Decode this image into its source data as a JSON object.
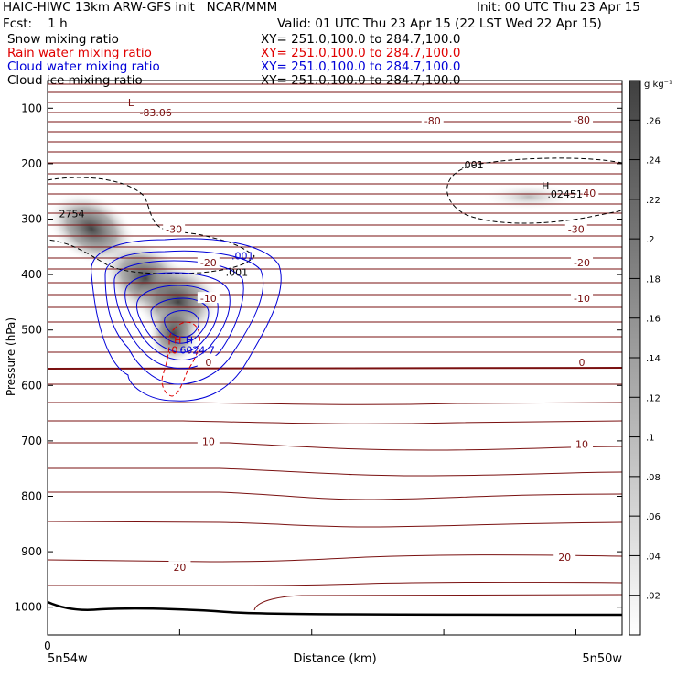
{
  "header": {
    "line1_left": "HAIC-HIWC 13km ARW-GFS init   NCAR/MMM",
    "line1_right": "Init: 00 UTC Thu 23 Apr 15",
    "line2_left": "Fcst:    1 h",
    "line2_right": "Valid: 01 UTC Thu 23 Apr 15 (22 LST Wed 22 Apr 15)"
  },
  "fields": [
    {
      "label": "Snow mixing ratio",
      "range": "XY= 251.0,100.0 to 284.7,100.0",
      "color": "#000000"
    },
    {
      "label": "Rain water mixing ratio",
      "range": "XY= 251.0,100.0 to 284.7,100.0",
      "color": "#e00000"
    },
    {
      "label": "Cloud water mixing ratio",
      "range": "XY= 251.0,100.0 to 284.7,100.0",
      "color": "#0000d8"
    },
    {
      "label": "Cloud ice mixing ratio",
      "range": "XY= 251.0,100.0 to 284.7,100.0",
      "color": "#000000"
    }
  ],
  "chart_data": {
    "type": "contour",
    "xlabel": "Distance (km)",
    "ylabel": "Pressure (hPa)",
    "x_tick_labels": [
      "0"
    ],
    "x_endpoint_labels": {
      "left": "5n54w",
      "right": "5n50w"
    },
    "y_ticks": [
      100,
      200,
      300,
      400,
      500,
      600,
      700,
      800,
      900,
      1000
    ],
    "ylim": [
      50,
      1050
    ],
    "colorbar": {
      "unit": "g kg⁻¹",
      "ticks": [
        ".02",
        ".04",
        ".06",
        ".08",
        ".1",
        ".12",
        ".14",
        ".16",
        ".18",
        ".2",
        ".22",
        ".24",
        ".26"
      ]
    },
    "temperature_contour_labels": [
      {
        "text": "-80",
        "x": 0.67,
        "p": 123
      },
      {
        "text": "-80",
        "x": 0.93,
        "p": 121
      },
      {
        "text": "-40",
        "x": 0.94,
        "p": 253
      },
      {
        "text": "-30",
        "x": 0.22,
        "p": 318
      },
      {
        "text": "-30",
        "x": 0.92,
        "p": 318
      },
      {
        "text": "-20",
        "x": 0.28,
        "p": 378
      },
      {
        "text": "-20",
        "x": 0.93,
        "p": 378
      },
      {
        "text": "-10",
        "x": 0.28,
        "p": 443
      },
      {
        "text": "-10",
        "x": 0.93,
        "p": 443
      },
      {
        "text": "0",
        "x": 0.28,
        "p": 558
      },
      {
        "text": "0",
        "x": 0.93,
        "p": 558
      },
      {
        "text": "10",
        "x": 0.28,
        "p": 701
      },
      {
        "text": "10",
        "x": 0.93,
        "p": 706
      },
      {
        "text": "20",
        "x": 0.23,
        "p": 928
      },
      {
        "text": "20",
        "x": 0.9,
        "p": 910
      }
    ],
    "extrema_labels": [
      {
        "text": "L",
        "x": 0.14,
        "p": 90,
        "color": "#7a1010"
      },
      {
        "text": "-83.06",
        "x": 0.16,
        "p": 108,
        "color": "#7a1010"
      },
      {
        "text": "2754",
        "x": 0.02,
        "p": 290,
        "color": "#000000"
      },
      {
        "text": "H",
        "x": 0.86,
        "p": 240,
        "color": "#000000"
      },
      {
        "text": ".02451",
        "x": 0.87,
        "p": 255,
        "color": "#000000"
      },
      {
        "text": ".001",
        "x": 0.72,
        "p": 202,
        "color": "#000000"
      },
      {
        "text": ".001",
        "x": 0.32,
        "p": 366,
        "color": "#0000d8"
      },
      {
        "text": ".001",
        "x": 0.31,
        "p": 396,
        "color": "#000000"
      },
      {
        "text": "H",
        "x": 0.22,
        "p": 518,
        "color": "#e00000"
      },
      {
        "text": "H",
        "x": 0.24,
        "p": 518,
        "color": "#0000d8"
      },
      {
        "text": ".0",
        "x": 0.21,
        "p": 536,
        "color": "#e00000"
      },
      {
        "text": "6024",
        "x": 0.23,
        "p": 536,
        "color": "#0000d8"
      },
      {
        "text": "7",
        "x": 0.28,
        "p": 536,
        "color": "#0000d8"
      }
    ]
  },
  "colors": {
    "temperature": "#7a1010",
    "snow": "#000000",
    "rain": "#e00000",
    "cloud_water": "#0000d8",
    "terrain": "#000000"
  }
}
